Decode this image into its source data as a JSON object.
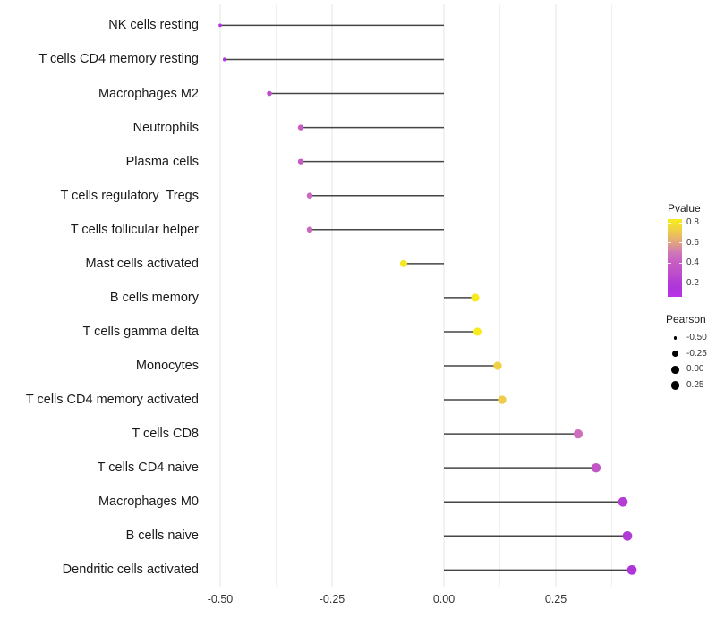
{
  "chart_data": {
    "type": "scatter",
    "variant": "lollipop",
    "title": "",
    "xlabel": "",
    "ylabel": "",
    "categories": [
      "NK cells resting",
      "T cells CD4 memory resting",
      "Macrophages M2",
      "Neutrophils",
      "Plasma cells",
      "T cells regulatory  Tregs",
      "T cells follicular helper",
      "Mast cells activated",
      "B cells memory",
      "T cells gamma delta",
      "Monocytes",
      "T cells CD4 memory activated",
      "T cells CD8",
      "T cells CD4 naive",
      "Macrophages M0",
      "B cells naive",
      "Dendritic cells activated"
    ],
    "series": [
      {
        "name": "Pearson",
        "values": [
          -0.5,
          -0.49,
          -0.39,
          -0.32,
          -0.32,
          -0.3,
          -0.3,
          -0.09,
          0.07,
          0.075,
          0.12,
          0.13,
          0.3,
          0.34,
          0.4,
          0.41,
          0.42
        ]
      },
      {
        "name": "Pvalue",
        "values": [
          0.12,
          0.13,
          0.3,
          0.4,
          0.4,
          0.45,
          0.45,
          0.82,
          0.85,
          0.85,
          0.74,
          0.72,
          0.48,
          0.36,
          0.22,
          0.19,
          0.15
        ]
      }
    ],
    "baseline": 0,
    "xlim": [
      -0.549,
      0.468
    ],
    "x_ticks": [
      {
        "label": "-0.50",
        "value": -0.5
      },
      {
        "label": "-0.25",
        "value": -0.25
      },
      {
        "label": "0.00",
        "value": 0
      },
      {
        "label": "0.25",
        "value": 0.25
      }
    ],
    "x_minor_gridlines": [
      -0.375,
      -0.125,
      0.125,
      0.375
    ],
    "grid": "vertical-only",
    "legend_position": "right",
    "color_legend": {
      "title": "Pvalue",
      "ticks": [
        {
          "label": "0.8",
          "value": 0.8
        },
        {
          "label": "0.6",
          "value": 0.6
        },
        {
          "label": "0.4",
          "value": 0.4
        },
        {
          "label": "0.2",
          "value": 0.2
        }
      ],
      "range_top": 0.84,
      "range_bottom": 0.065
    },
    "size_legend": {
      "title": "Pearson",
      "entries": [
        {
          "label": "-0.50",
          "value": -0.5
        },
        {
          "label": "-0.25",
          "value": -0.25
        },
        {
          "label": "0.00",
          "value": 0
        },
        {
          "label": "0.25",
          "value": 0.25
        }
      ]
    },
    "colormap": [
      {
        "p": 0.05,
        "c": "#BD32EC"
      },
      {
        "p": 0.15,
        "c": "#AF35DA"
      },
      {
        "p": 0.22,
        "c": "#B33DD5"
      },
      {
        "p": 0.3,
        "c": "#BE4ECB"
      },
      {
        "p": 0.4,
        "c": "#C75CC4"
      },
      {
        "p": 0.5,
        "c": "#CE74BA"
      },
      {
        "p": 0.6,
        "c": "#E0A183"
      },
      {
        "p": 0.7,
        "c": "#ECC653"
      },
      {
        "p": 0.8,
        "c": "#F4E42A"
      },
      {
        "p": 0.88,
        "c": "#F9EF15"
      }
    ],
    "colors": {
      "stem": "#454545",
      "grid_major": "#E4E4E4",
      "grid_minor": "#F1F1F1",
      "axis_text": "#333333",
      "category_text": "#1A1A1A",
      "legend_text": "#333333",
      "legend_title": "#1A1A1A",
      "size_dot": "#000000",
      "background": "#FFFFFF"
    }
  }
}
